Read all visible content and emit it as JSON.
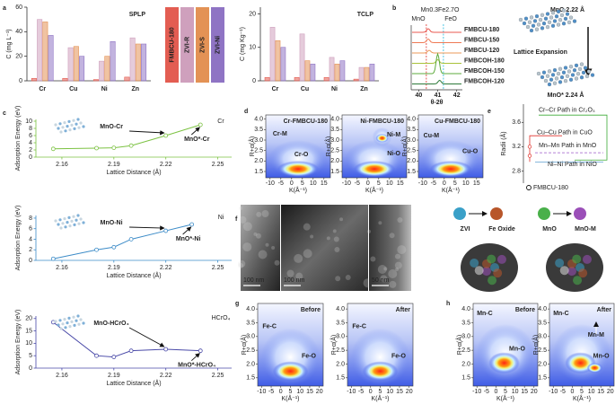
{
  "panel_letters": [
    "a",
    "b",
    "c",
    "d",
    "e",
    "f",
    "g",
    "h"
  ],
  "chart_data": [
    {
      "type": "bar",
      "title": "SPLP",
      "y_label": "C (mg L⁻¹)",
      "categories": [
        "Cr",
        "Cu",
        "Ni",
        "Zn"
      ],
      "category_colors": [
        "#2f5597",
        "#3a9a3a",
        "#d9662a",
        "#2f5597"
      ],
      "series": [
        {
          "name": "FMBCU-180",
          "color": "#e35d52",
          "values": [
            2,
            2,
            1,
            3
          ]
        },
        {
          "name": "ZVI-R",
          "color": "#cfa0bd",
          "values": [
            50,
            27,
            16,
            35
          ]
        },
        {
          "name": "ZVI-S",
          "color": "#e39255",
          "values": [
            48,
            28,
            20,
            30
          ]
        },
        {
          "name": "ZVI-Ni",
          "color": "#8f74c4",
          "values": [
            37,
            20,
            32,
            30
          ]
        }
      ],
      "ylim": [
        0,
        60
      ],
      "yticks": [
        0,
        20,
        40,
        60
      ]
    },
    {
      "type": "bar",
      "title": "TCLP",
      "y_label": "C (mg Kg⁻¹)",
      "categories": [
        "Cr",
        "Cu",
        "Ni",
        "Zn"
      ],
      "category_colors": [
        "#2f5597",
        "#3a9a3a",
        "#d9662a",
        "#2f5597"
      ],
      "series": [
        {
          "color": "#e35d52",
          "values": [
            1,
            1,
            1,
            0.5
          ]
        },
        {
          "color": "#cfa0bd",
          "values": [
            16,
            14,
            7,
            4
          ]
        },
        {
          "color": "#e39255",
          "values": [
            12,
            6,
            5,
            4
          ]
        },
        {
          "color": "#8f74c4",
          "values": [
            10,
            5,
            6,
            5
          ]
        }
      ],
      "ylim": [
        0,
        22
      ],
      "yticks": [
        0,
        10,
        20
      ]
    },
    {
      "type": "line",
      "x_label": "Lattice Distance (Å)",
      "y_label": "Adsorption Energy (eV)",
      "x": [
        2.155,
        2.18,
        2.19,
        2.2,
        2.22,
        2.24
      ],
      "series": [
        {
          "name": "Cr",
          "color": "#7cc242",
          "values": [
            2.3,
            2.5,
            2.6,
            3.2,
            6,
            9
          ]
        }
      ],
      "xlim": [
        2.145,
        2.258
      ],
      "xticks": [
        2.16,
        2.19,
        2.22,
        2.25
      ],
      "ylim": [
        0,
        10.5
      ],
      "yticks": [
        0,
        2,
        4,
        6,
        8,
        10
      ],
      "annotations": [
        "MnO-Cr",
        "MnO*-Cr"
      ]
    },
    {
      "type": "line",
      "x_label": "Lattice Distance (Å)",
      "y_label": "Adsorption Energy (eV)",
      "x": [
        2.155,
        2.18,
        2.19,
        2.2,
        2.22,
        2.235
      ],
      "series": [
        {
          "name": "Ni",
          "color": "#3d8cc8",
          "values": [
            0.3,
            2,
            2.5,
            4,
            5.6,
            6.8
          ]
        }
      ],
      "xlim": [
        2.145,
        2.258
      ],
      "xticks": [
        2.16,
        2.19,
        2.22,
        2.25
      ],
      "ylim": [
        0,
        8.5
      ],
      "yticks": [
        0,
        2,
        4,
        6,
        8
      ],
      "annotations": [
        "MnO-Ni",
        "MnO*-Ni"
      ]
    },
    {
      "type": "line",
      "x_label": "Lattice Distance (Å)",
      "y_label": "Adsorption Energy (eV)",
      "x": [
        2.155,
        2.18,
        2.19,
        2.2,
        2.22,
        2.24
      ],
      "series": [
        {
          "name": "HCrO₄",
          "color": "#4a4aa8",
          "values": [
            18.5,
            5,
            4.5,
            7,
            7.6,
            7
          ]
        }
      ],
      "xlim": [
        2.145,
        2.258
      ],
      "xticks": [
        2.16,
        2.19,
        2.22,
        2.25
      ],
      "ylim": [
        0,
        21
      ],
      "yticks": [
        0,
        5,
        10,
        15,
        20
      ],
      "annotations": [
        "MnO-HCrO₄",
        "MnO*-HCrO₄"
      ]
    }
  ],
  "panel_b": {
    "title": "Mn0.3Fe2.7O",
    "peaks": [
      {
        "name": "MnO",
        "color": "#e0302a"
      },
      {
        "name": "FeO",
        "color": "#22b8dd"
      }
    ],
    "samples": [
      {
        "name": "FMBCU-180",
        "color": "#e8584f"
      },
      {
        "name": "FMBCU-150",
        "color": "#ef7a55"
      },
      {
        "name": "FMBCU-120",
        "color": "#eb9a5a"
      },
      {
        "name": "FMBCOH-180",
        "color": "#a9c23a"
      },
      {
        "name": "FMBCOH-150",
        "color": "#5eab3e"
      },
      {
        "name": "FMBCOH-120",
        "color": "#2e7a3a"
      }
    ],
    "xticks": [
      40,
      41,
      42
    ],
    "x_label": "θ-2θ"
  },
  "panel_b_scheme": {
    "before": "MnO 2.22 Å",
    "process": "Lattice Expansion",
    "after": "MnO* 2.24 Å"
  },
  "panel_d": {
    "xlim": [
      -12,
      18
    ],
    "ylim": [
      1.2,
      4.2
    ],
    "xticks": [
      -10,
      -5,
      0,
      5,
      10,
      15
    ],
    "yticks": [
      1.5,
      {
        "value": 2,
        "label": "2.0"
      },
      2.5,
      {
        "value": 3,
        "label": "3.0"
      },
      3.5,
      {
        "value": 4,
        "label": "4.0"
      }
    ],
    "x_label": "K(Å⁻¹)",
    "y_label": "R+α(Å)",
    "maps": [
      {
        "title": "Cr-FMBCU-180",
        "labels": [
          "Cr-M",
          "Cr-O"
        ]
      },
      {
        "title": "Ni-FMBCU-180",
        "labels": [
          "Ni-M",
          "Ni-O"
        ]
      },
      {
        "title": "Cu-FMBCU-180",
        "labels": [
          "Cu-M",
          "Cu-O"
        ]
      }
    ]
  },
  "panel_e": {
    "y_label": "Radii (Å)",
    "ylim": [
      2.6,
      3.9
    ],
    "yticks": [
      2.8,
      3.2,
      3.6
    ],
    "paths": [
      {
        "name": "Cr–Cr Path in Cr₂O₃",
        "color": "#3aaa35"
      },
      {
        "name": "Cu–Cu Path in CuO",
        "color": "#e0302a"
      },
      {
        "name": "Mn–Mn Path in MnO",
        "color": "#9b59c8"
      },
      {
        "name": "Ni–Ni Path in NiO",
        "color": "#3d8cc8"
      }
    ],
    "sample": "FMBCU-180"
  },
  "panel_f": {
    "scale_bars": [
      "100 nm",
      "100 nm",
      "50 nm"
    ],
    "scheme": [
      "ZVI",
      "Fe Oxide",
      "MnO",
      "MnO-M"
    ]
  },
  "panel_g": {
    "xlim": [
      -12,
      22
    ],
    "ylim": [
      1.2,
      4.2
    ],
    "xticks": [
      -10,
      -5,
      0,
      5,
      10,
      15,
      20
    ],
    "yticks": [
      1.5,
      {
        "value": 2,
        "label": "2.0"
      },
      2.5,
      {
        "value": 3,
        "label": "3.0"
      },
      3.5,
      {
        "value": 4,
        "label": "4.0"
      }
    ],
    "x_label": "K(Å⁻¹)",
    "y_label": "R+α(Å)",
    "maps": [
      {
        "title": "Before",
        "labels": [
          "Fe-C",
          "Fe-O"
        ]
      },
      {
        "title": "After",
        "labels": [
          "Fe-C",
          "Fe-O"
        ]
      }
    ]
  },
  "panel_h": {
    "xlim": [
      -12,
      22
    ],
    "ylim": [
      1.2,
      4.2
    ],
    "xticks": [
      -10,
      -5,
      0,
      5,
      10,
      15,
      20
    ],
    "yticks": [
      1.5,
      {
        "value": 2,
        "label": "2.0"
      },
      2.5,
      {
        "value": 3,
        "label": "3.0"
      },
      3.5,
      {
        "value": 4,
        "label": "4.0"
      }
    ],
    "x_label": "K(Å⁻¹)",
    "y_label": "R+α(Å)",
    "maps": [
      {
        "title": "Before",
        "labels": [
          "Mn-C",
          "Mn-O"
        ]
      },
      {
        "title": "After",
        "labels": [
          "Mn-C",
          "Mn-M",
          "Mn-O"
        ]
      }
    ]
  }
}
